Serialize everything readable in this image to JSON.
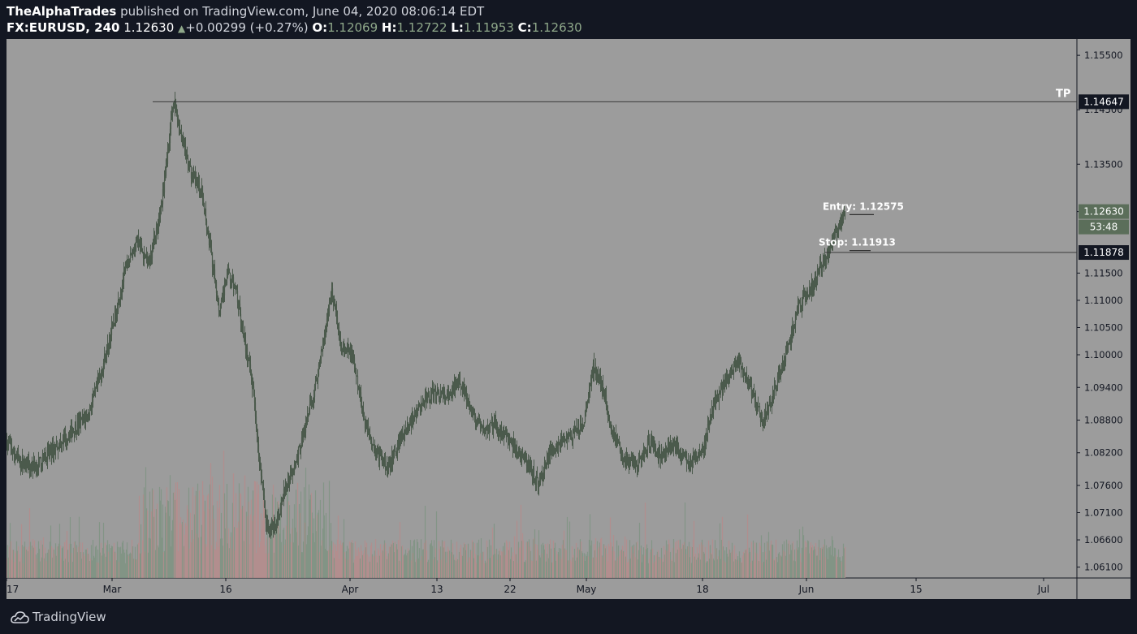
{
  "header": {
    "author": "TheAlphaTrades",
    "published_text": "published on TradingView.com, June 04, 2020 08:06:14 EDT",
    "symbol": "FX:EURUSD, 240",
    "last": "1.12630",
    "change": "+0.00299 (+0.27%)",
    "o_label": "O:",
    "o_value": "1.12069",
    "h_label": "H:",
    "h_value": "1.12722",
    "l_label": "L:",
    "l_value": "1.11953",
    "c_label": "C:",
    "c_value": "1.12630"
  },
  "footer": {
    "brand": "TradingView"
  },
  "colors": {
    "background": "#9c9c9c",
    "candle": "#4b5a4c",
    "volume_up": "#7f9482",
    "volume_down": "#b58c8c",
    "hline": "#3a3a3a",
    "axis_text": "#131722"
  },
  "chart_data": {
    "type": "candlestick",
    "ylim": [
      1.059,
      1.158
    ],
    "y_ticks": [
      "1.15500",
      "1.14500",
      "1.13500",
      "1.12630",
      "1.11500",
      "1.11000",
      "1.10500",
      "1.10000",
      "1.09400",
      "1.08800",
      "1.08200",
      "1.07600",
      "1.07100",
      "1.06600",
      "1.06100"
    ],
    "x_ticks": [
      "17",
      "Mar",
      "16",
      "Apr",
      "13",
      "22",
      "May",
      "18",
      "Jun",
      "15",
      "Jul"
    ],
    "horizontal_lines": [
      {
        "label": "TP",
        "price": 1.14647,
        "tag": "1.14647"
      },
      {
        "label": "",
        "price": 1.11878,
        "tag": "1.11878"
      }
    ],
    "annotations": [
      {
        "text": "Entry: 1.12575",
        "price": 1.12575
      },
      {
        "text": "Stop: 1.11913",
        "price": 1.11913
      }
    ],
    "last_price_tag": "1.12630",
    "countdown_tag": "53:48",
    "path_waypoints": [
      [
        0,
        1.084
      ],
      [
        15,
        1.0805
      ],
      [
        35,
        1.0795
      ],
      [
        60,
        1.083
      ],
      [
        80,
        1.086
      ],
      [
        100,
        1.089
      ],
      [
        115,
        1.096
      ],
      [
        130,
        1.105
      ],
      [
        145,
        1.115
      ],
      [
        160,
        1.121
      ],
      [
        175,
        1.1165
      ],
      [
        190,
        1.127
      ],
      [
        200,
        1.14
      ],
      [
        205,
        1.147
      ],
      [
        212,
        1.142
      ],
      [
        225,
        1.134
      ],
      [
        240,
        1.13
      ],
      [
        252,
        1.118
      ],
      [
        262,
        1.108
      ],
      [
        272,
        1.115
      ],
      [
        282,
        1.112
      ],
      [
        292,
        1.103
      ],
      [
        303,
        1.094
      ],
      [
        313,
        1.078
      ],
      [
        320,
        1.068
      ],
      [
        330,
        1.068
      ],
      [
        342,
        1.075
      ],
      [
        355,
        1.08
      ],
      [
        370,
        1.088
      ],
      [
        385,
        1.098
      ],
      [
        400,
        1.112
      ],
      [
        412,
        1.101
      ],
      [
        425,
        1.1
      ],
      [
        440,
        1.088
      ],
      [
        455,
        1.082
      ],
      [
        470,
        1.079
      ],
      [
        485,
        1.085
      ],
      [
        500,
        1.088
      ],
      [
        515,
        1.092
      ],
      [
        530,
        1.093
      ],
      [
        545,
        1.092
      ],
      [
        557,
        1.096
      ],
      [
        570,
        1.09
      ],
      [
        585,
        1.086
      ],
      [
        600,
        1.087
      ],
      [
        615,
        1.085
      ],
      [
        630,
        1.082
      ],
      [
        645,
        1.079
      ],
      [
        655,
        1.076
      ],
      [
        665,
        1.081
      ],
      [
        680,
        1.084
      ],
      [
        695,
        1.085
      ],
      [
        710,
        1.087
      ],
      [
        722,
        1.098
      ],
      [
        735,
        1.093
      ],
      [
        745,
        1.086
      ],
      [
        760,
        1.081
      ],
      [
        775,
        1.079
      ],
      [
        790,
        1.084
      ],
      [
        805,
        1.081
      ],
      [
        818,
        1.084
      ],
      [
        830,
        1.082
      ],
      [
        845,
        1.08
      ],
      [
        858,
        1.083
      ],
      [
        870,
        1.091
      ],
      [
        885,
        1.095
      ],
      [
        900,
        1.099
      ],
      [
        915,
        1.094
      ],
      [
        930,
        1.088
      ],
      [
        942,
        1.092
      ],
      [
        955,
        1.098
      ],
      [
        965,
        1.103
      ],
      [
        975,
        1.109
      ],
      [
        990,
        1.112
      ],
      [
        1005,
        1.117
      ],
      [
        1015,
        1.12
      ],
      [
        1025,
        1.124
      ],
      [
        1032,
        1.1263
      ]
    ]
  }
}
